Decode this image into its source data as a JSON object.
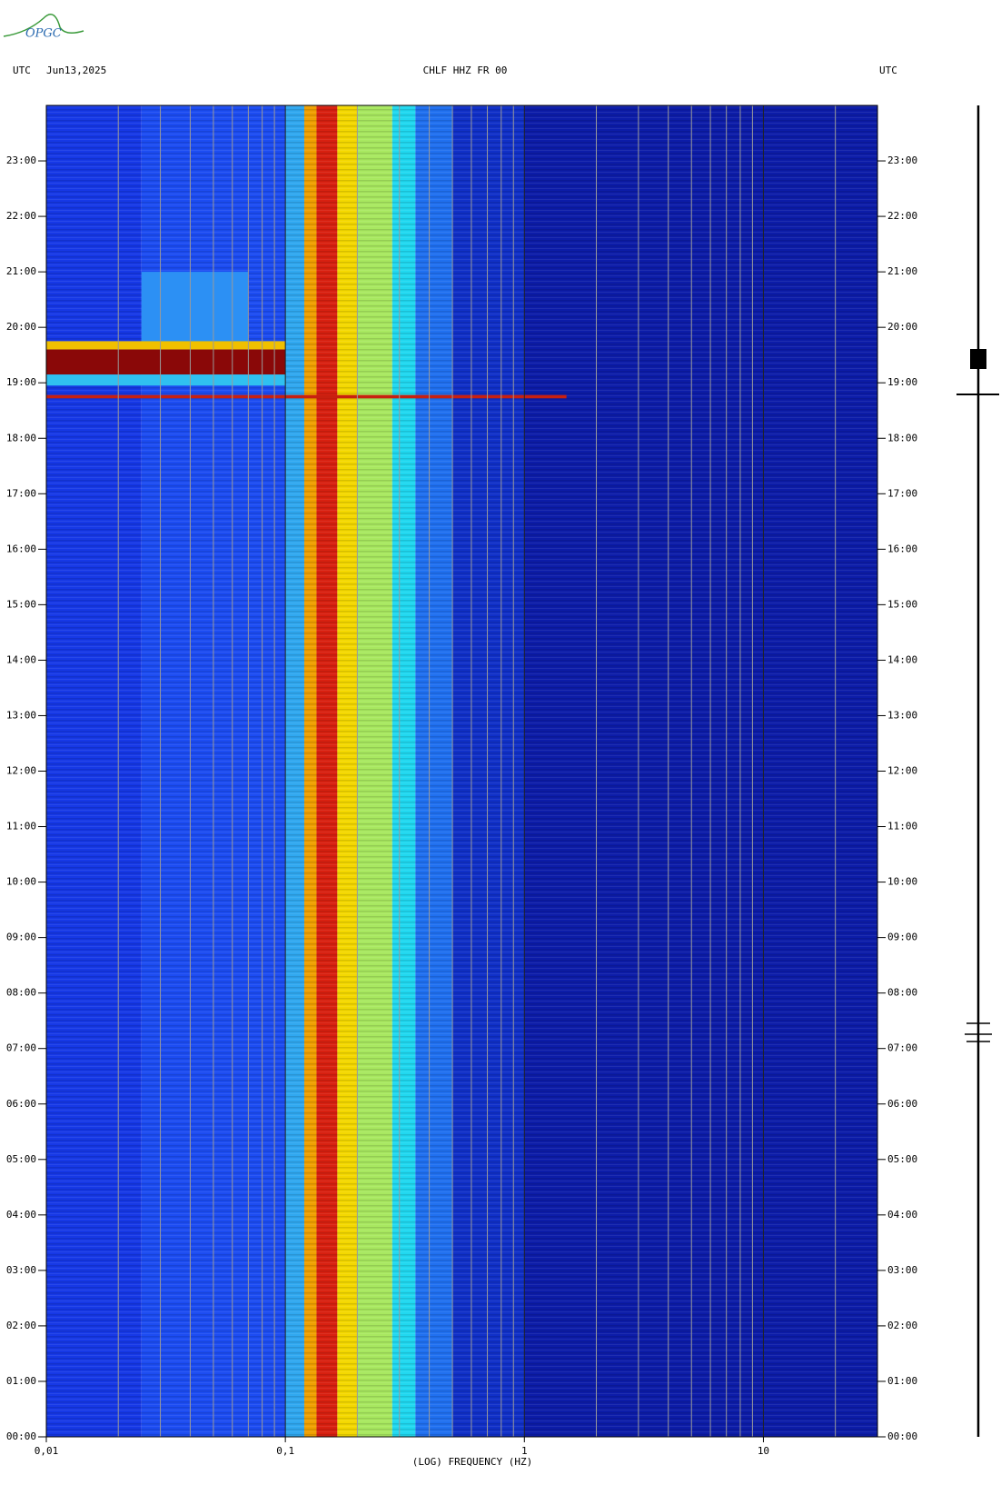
{
  "logo": "OPGC",
  "chart_data": {
    "type": "spectrogram",
    "header_left": "UTC",
    "date": "Jun13,2025",
    "title": "CHLF HHZ FR 00",
    "header_right": "UTC",
    "xlabel": "(LOG) FREQUENCY (HZ)",
    "xscale": "log",
    "xlim": [
      0.01,
      30
    ],
    "xticks": [
      {
        "value": 0.01,
        "label": "0,01"
      },
      {
        "value": 0.1,
        "label": "0,1"
      },
      1,
      10
    ],
    "xgrid": [
      0.02,
      0.03,
      0.04,
      0.05,
      0.06,
      0.07,
      0.08,
      0.09,
      0.2,
      0.3,
      0.4,
      0.5,
      0.6,
      0.7,
      0.8,
      0.9,
      2,
      3,
      4,
      5,
      6,
      7,
      8,
      9,
      20
    ],
    "ylim": [
      0,
      24
    ],
    "yticks": [
      {
        "value": 0,
        "label": "00:00"
      },
      {
        "value": 1,
        "label": "01:00"
      },
      {
        "value": 2,
        "label": "02:00"
      },
      {
        "value": 3,
        "label": "03:00"
      },
      {
        "value": 4,
        "label": "04:00"
      },
      {
        "value": 5,
        "label": "05:00"
      },
      {
        "value": 6,
        "label": "06:00"
      },
      {
        "value": 7,
        "label": "07:00"
      },
      {
        "value": 8,
        "label": "08:00"
      },
      {
        "value": 9,
        "label": "09:00"
      },
      {
        "value": 10,
        "label": "10:00"
      },
      {
        "value": 11,
        "label": "11:00"
      },
      {
        "value": 12,
        "label": "12:00"
      },
      {
        "value": 13,
        "label": "13:00"
      },
      {
        "value": 14,
        "label": "14:00"
      },
      {
        "value": 15,
        "label": "15:00"
      },
      {
        "value": 16,
        "label": "16:00"
      },
      {
        "value": 17,
        "label": "17:00"
      },
      {
        "value": 18,
        "label": "18:00"
      },
      {
        "value": 19,
        "label": "19:00"
      },
      {
        "value": 20,
        "label": "20:00"
      },
      {
        "value": 21,
        "label": "21:00"
      },
      {
        "value": 22,
        "label": "22:00"
      },
      {
        "value": 23,
        "label": "23:00"
      }
    ],
    "bands": [
      {
        "freq": [
          0.01,
          0.025
        ],
        "color": "#1638e6"
      },
      {
        "freq": [
          0.025,
          0.1
        ],
        "color": "#1c4cf2"
      },
      {
        "freq": [
          0.1,
          0.12
        ],
        "color": "#30a8f0"
      },
      {
        "freq": [
          0.12,
          0.135
        ],
        "color": "#f0a000"
      },
      {
        "freq": [
          0.135,
          0.165
        ],
        "color": "#d82010"
      },
      {
        "freq": [
          0.165,
          0.2
        ],
        "color": "#f4d800"
      },
      {
        "freq": [
          0.2,
          0.28
        ],
        "color": "#a8e860"
      },
      {
        "freq": [
          0.28,
          0.35
        ],
        "color": "#20d8f0"
      },
      {
        "freq": [
          0.35,
          0.5
        ],
        "color": "#2070f0"
      },
      {
        "freq": [
          0.5,
          1
        ],
        "color": "#1030c8"
      },
      {
        "freq": [
          1,
          30
        ],
        "color": "#0c1ca8"
      }
    ],
    "events": [
      {
        "hours": [
          19.6,
          21
        ],
        "freq": [
          0.025,
          0.07
        ],
        "color": "#2c90f4"
      },
      {
        "hours": [
          19.6,
          19.75
        ],
        "freq": [
          0.01,
          0.1
        ],
        "color": "#f0c000"
      },
      {
        "hours": [
          19.15,
          19.6
        ],
        "freq": [
          0.01,
          0.1
        ],
        "color": "#8a0808"
      },
      {
        "hours": [
          18.95,
          19.15
        ],
        "freq": [
          0.01,
          0.1
        ],
        "color": "#30c0f0"
      },
      {
        "hours": [
          18.72,
          18.78
        ],
        "freq": [
          0.01,
          1.5
        ],
        "color": "#c82010"
      }
    ]
  }
}
